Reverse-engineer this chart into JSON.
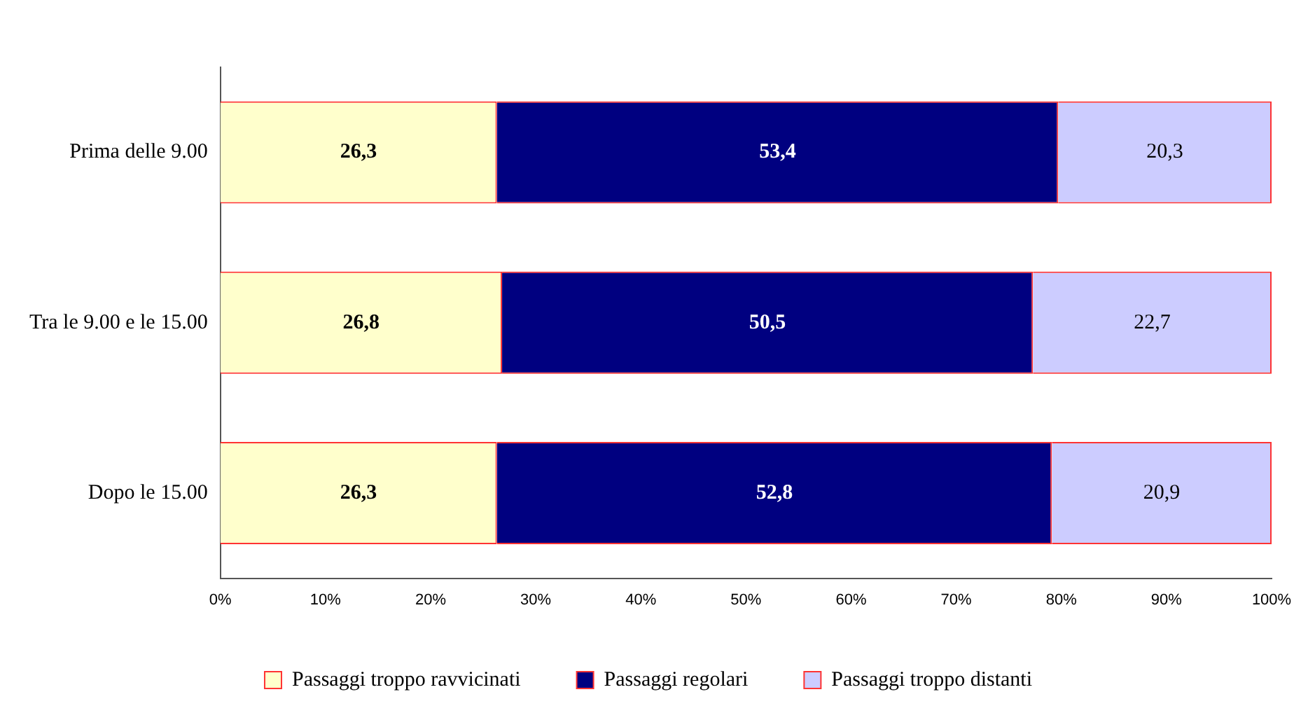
{
  "chart_data": {
    "type": "bar",
    "orientation": "horizontal",
    "stacked": true,
    "legend": "bottom",
    "categories": [
      "Prima delle 9.00",
      "Tra le 9.00 e le 15.00",
      "Dopo le 15.00"
    ],
    "xlim": [
      0,
      100
    ],
    "xticks": [
      {
        "value": 0,
        "label": "0%"
      },
      {
        "value": 10,
        "label": "10%"
      },
      {
        "value": 20,
        "label": "20%"
      },
      {
        "value": 30,
        "label": "30%"
      },
      {
        "value": 40,
        "label": "40%"
      },
      {
        "value": 50,
        "label": "50%"
      },
      {
        "value": 60,
        "label": "60%"
      },
      {
        "value": 70,
        "label": "70%"
      },
      {
        "value": 80,
        "label": "80%"
      },
      {
        "value": 90,
        "label": "90%"
      },
      {
        "value": 100,
        "label": "100%"
      }
    ],
    "series": [
      {
        "name": "Passaggi troppo ravvicinati",
        "color": "#ffffcc",
        "values": [
          26.3,
          26.8,
          26.3
        ],
        "value_labels": [
          "26,3",
          "26,8",
          "26,3"
        ]
      },
      {
        "name": "Passaggi regolari",
        "color": "#000080",
        "values": [
          53.4,
          50.5,
          52.8
        ],
        "value_labels": [
          "53,4",
          "50,5",
          "52,8"
        ]
      },
      {
        "name": "Passaggi troppo distanti",
        "color": "#ccccff",
        "values": [
          20.3,
          22.7,
          20.9
        ],
        "value_labels": [
          "20,3",
          "22,7",
          "20,9"
        ]
      }
    ]
  }
}
